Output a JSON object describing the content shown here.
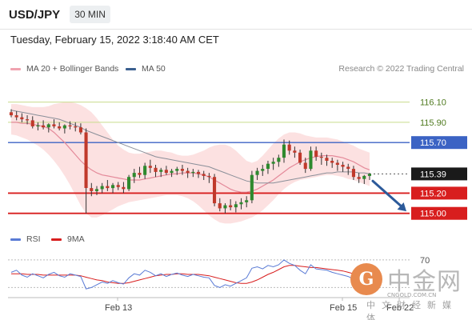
{
  "header": {
    "symbol": "USD/JPY",
    "timeframe": "30 MIN"
  },
  "datetime": "Tuesday, February 15, 2022 3:18:40 AM CET",
  "legend": {
    "ma20_label": "MA 20 + Bollinger Bands",
    "ma50_label": "MA 50",
    "credit": "Research © 2022 Trading Central"
  },
  "rsi_legend": {
    "rsi_label": "RSI",
    "ma9_label": "9MA"
  },
  "colors": {
    "ma20": "#f0a3b0",
    "ma50": "#3a5f8f",
    "bollinger_fill": "#fbdcdc",
    "resistance": "#3b63c4",
    "support": "#d81e1e",
    "candle_up": "#2e8a2e",
    "candle_down": "#c0392b",
    "arrow": "#2c5a9a",
    "price_tag": "#1a1a1a",
    "gridline": "#c8dc8c",
    "rsi": "#5a7bd5",
    "rsi_ma": "#d81e1e"
  },
  "watermark": {
    "glyph": "G",
    "name": "中金网",
    "url": "CNGOLD.COM.CN",
    "subtitle": "中文财经新媒体"
  },
  "chart_data": {
    "type": "candlestick",
    "title": "USD/JPY",
    "timeframe": "30 MIN",
    "x_ticks": [
      "Feb 13",
      "Feb 15",
      "Feb 22"
    ],
    "ylim": [
      114.8,
      116.35
    ],
    "levels": [
      {
        "price": 116.1,
        "label": "116.10",
        "style": "grid"
      },
      {
        "price": 115.9,
        "label": "115.90",
        "style": "grid"
      },
      {
        "price": 115.7,
        "label": "115.70",
        "style": "resistance"
      },
      {
        "price": 115.39,
        "label": "115.39",
        "style": "current"
      },
      {
        "price": 115.2,
        "label": "115.20",
        "style": "support"
      },
      {
        "price": 115.0,
        "label": "115.00",
        "style": "support"
      }
    ],
    "candles": [
      [
        116.0,
        116.03,
        115.95,
        115.97
      ],
      [
        115.97,
        116.01,
        115.92,
        115.95
      ],
      [
        115.95,
        115.99,
        115.9,
        115.93
      ],
      [
        115.93,
        115.97,
        115.88,
        115.92
      ],
      [
        115.92,
        115.96,
        115.84,
        115.86
      ],
      [
        115.86,
        115.9,
        115.82,
        115.87
      ],
      [
        115.87,
        115.92,
        115.83,
        115.85
      ],
      [
        115.85,
        115.89,
        115.8,
        115.88
      ],
      [
        115.88,
        115.93,
        115.84,
        115.86
      ],
      [
        115.86,
        115.9,
        115.82,
        115.84
      ],
      [
        115.84,
        115.88,
        115.79,
        115.87
      ],
      [
        115.87,
        115.91,
        115.83,
        115.86
      ],
      [
        115.86,
        115.9,
        115.81,
        115.85
      ],
      [
        115.85,
        115.89,
        115.78,
        115.8
      ],
      [
        115.8,
        115.84,
        115.0,
        115.25
      ],
      [
        115.25,
        115.3,
        115.17,
        115.22
      ],
      [
        115.22,
        115.27,
        115.18,
        115.24
      ],
      [
        115.24,
        115.3,
        115.2,
        115.27
      ],
      [
        115.27,
        115.33,
        115.22,
        115.25
      ],
      [
        115.25,
        115.3,
        115.2,
        115.28
      ],
      [
        115.28,
        115.31,
        115.23,
        115.26
      ],
      [
        115.26,
        115.31,
        115.2,
        115.24
      ],
      [
        115.24,
        115.38,
        115.22,
        115.36
      ],
      [
        115.36,
        115.44,
        115.3,
        115.4
      ],
      [
        115.4,
        115.46,
        115.35,
        115.38
      ],
      [
        115.38,
        115.5,
        115.34,
        115.47
      ],
      [
        115.47,
        115.53,
        115.4,
        115.45
      ],
      [
        115.45,
        115.48,
        115.36,
        115.41
      ],
      [
        115.41,
        115.45,
        115.36,
        115.43
      ],
      [
        115.43,
        115.47,
        115.38,
        115.4
      ],
      [
        115.4,
        115.44,
        115.36,
        115.42
      ],
      [
        115.42,
        115.46,
        115.38,
        115.44
      ],
      [
        115.44,
        115.48,
        115.38,
        115.42
      ],
      [
        115.42,
        115.45,
        115.35,
        115.4
      ],
      [
        115.4,
        115.44,
        115.36,
        115.41
      ],
      [
        115.41,
        115.43,
        115.35,
        115.39
      ],
      [
        115.39,
        115.42,
        115.33,
        115.37
      ],
      [
        115.37,
        115.4,
        115.3,
        115.36
      ],
      [
        115.36,
        115.39,
        115.07,
        115.1
      ],
      [
        115.1,
        115.15,
        115.02,
        115.05
      ],
      [
        115.05,
        115.1,
        115.0,
        115.08
      ],
      [
        115.08,
        115.14,
        115.03,
        115.06
      ],
      [
        115.06,
        115.12,
        115.01,
        115.09
      ],
      [
        115.09,
        115.15,
        115.04,
        115.11
      ],
      [
        115.11,
        115.17,
        115.06,
        115.13
      ],
      [
        115.13,
        115.42,
        115.1,
        115.38
      ],
      [
        115.38,
        115.45,
        115.33,
        115.42
      ],
      [
        115.42,
        115.48,
        115.37,
        115.44
      ],
      [
        115.44,
        115.52,
        115.39,
        115.49
      ],
      [
        115.49,
        115.55,
        115.43,
        115.51
      ],
      [
        115.51,
        115.58,
        115.46,
        115.55
      ],
      [
        115.55,
        115.73,
        115.5,
        115.68
      ],
      [
        115.68,
        115.72,
        115.58,
        115.62
      ],
      [
        115.62,
        115.66,
        115.55,
        115.6
      ],
      [
        115.6,
        115.63,
        115.48,
        115.5
      ],
      [
        115.5,
        115.55,
        115.4,
        115.44
      ],
      [
        115.44,
        115.66,
        115.42,
        115.62
      ],
      [
        115.62,
        115.66,
        115.52,
        115.56
      ],
      [
        115.56,
        115.6,
        115.48,
        115.55
      ],
      [
        115.55,
        115.58,
        115.47,
        115.52
      ],
      [
        115.52,
        115.55,
        115.45,
        115.5
      ],
      [
        115.5,
        115.53,
        115.42,
        115.48
      ],
      [
        115.48,
        115.51,
        115.41,
        115.46
      ],
      [
        115.46,
        115.49,
        115.38,
        115.44
      ],
      [
        115.44,
        115.47,
        115.33,
        115.36
      ],
      [
        115.36,
        115.4,
        115.3,
        115.34
      ],
      [
        115.34,
        115.38,
        115.29,
        115.37
      ],
      [
        115.37,
        115.4,
        115.33,
        115.39
      ]
    ],
    "ma20": [
      115.9,
      115.9,
      115.89,
      115.89,
      115.88,
      115.87,
      115.86,
      115.84,
      115.8,
      115.75,
      115.7,
      115.64,
      115.58,
      115.52,
      115.47,
      115.43,
      115.4,
      115.38,
      115.37,
      115.36,
      115.35,
      115.34,
      115.33,
      115.33,
      115.33,
      115.34,
      115.35,
      115.36,
      115.37,
      115.38,
      115.39,
      115.39,
      115.4,
      115.4,
      115.4,
      115.39,
      115.38,
      115.36,
      115.33,
      115.3,
      115.27,
      115.24,
      115.22,
      115.21,
      115.21,
      115.22,
      115.24,
      115.27,
      115.3,
      115.33,
      115.37,
      115.41,
      115.45,
      115.48,
      115.51,
      115.53,
      115.55,
      115.56,
      115.57,
      115.57,
      115.57,
      115.56,
      115.55,
      115.53,
      115.51,
      115.48,
      115.45,
      115.43
    ],
    "ma50": [
      116.02,
      116.01,
      116.0,
      115.99,
      115.98,
      115.97,
      115.96,
      115.95,
      115.94,
      115.93,
      115.91,
      115.89,
      115.87,
      115.85,
      115.82,
      115.8,
      115.78,
      115.76,
      115.74,
      115.72,
      115.7,
      115.68,
      115.66,
      115.64,
      115.62,
      115.6,
      115.58,
      115.56,
      115.55,
      115.54,
      115.53,
      115.52,
      115.51,
      115.5,
      115.49,
      115.48,
      115.47,
      115.46,
      115.44,
      115.42,
      115.4,
      115.38,
      115.36,
      115.34,
      115.32,
      115.31,
      115.3,
      115.3,
      115.3,
      115.3,
      115.31,
      115.32,
      115.33,
      115.34,
      115.35,
      115.36,
      115.37,
      115.38,
      115.39,
      115.4,
      115.4,
      115.41,
      115.41,
      115.41,
      115.41,
      115.4,
      115.4,
      115.39
    ],
    "bollinger_upper": [
      116.08,
      116.08,
      116.07,
      116.06,
      116.05,
      116.05,
      116.05,
      116.06,
      116.08,
      116.09,
      116.1,
      116.1,
      116.09,
      116.07,
      116.04,
      116.0,
      115.94,
      115.87,
      115.8,
      115.73,
      115.67,
      115.63,
      115.6,
      115.59,
      115.59,
      115.6,
      115.61,
      115.62,
      115.62,
      115.61,
      115.6,
      115.58,
      115.57,
      115.57,
      115.58,
      115.6,
      115.62,
      115.65,
      115.67,
      115.68,
      115.68,
      115.66,
      115.62,
      115.57,
      115.52,
      115.5,
      115.52,
      115.57,
      115.63,
      115.69,
      115.74,
      115.78,
      115.8,
      115.8,
      115.79,
      115.77,
      115.76,
      115.75,
      115.75,
      115.75,
      115.74,
      115.73,
      115.71,
      115.69,
      115.67,
      115.64,
      115.62,
      115.6
    ],
    "bollinger_lower": [
      115.78,
      115.77,
      115.75,
      115.73,
      115.7,
      115.67,
      115.63,
      115.58,
      115.52,
      115.45,
      115.37,
      115.28,
      115.18,
      115.08,
      115.0,
      114.96,
      114.96,
      114.98,
      115.01,
      115.04,
      115.07,
      115.09,
      115.11,
      115.12,
      115.13,
      115.14,
      115.15,
      115.16,
      115.17,
      115.18,
      115.18,
      115.18,
      115.17,
      115.15,
      115.12,
      115.08,
      115.03,
      114.98,
      114.94,
      114.91,
      114.9,
      114.9,
      114.91,
      114.92,
      114.94,
      114.96,
      114.99,
      115.03,
      115.08,
      115.13,
      115.19,
      115.24,
      115.28,
      115.31,
      115.33,
      115.34,
      115.35,
      115.36,
      115.37,
      115.38,
      115.38,
      115.37,
      115.36,
      115.34,
      115.33,
      115.31,
      115.29,
      115.27
    ],
    "forecast_arrow": {
      "from": 115.32,
      "to": 115.02
    },
    "rsi": {
      "level_label": "70",
      "level": 70,
      "ylim": [
        20,
        85
      ],
      "rsi_values": [
        52,
        55,
        48,
        45,
        50,
        47,
        44,
        49,
        52,
        47,
        45,
        50,
        48,
        46,
        28,
        30,
        34,
        38,
        36,
        40,
        37,
        35,
        44,
        50,
        48,
        55,
        52,
        47,
        50,
        46,
        49,
        51,
        48,
        46,
        49,
        47,
        45,
        44,
        33,
        30,
        34,
        32,
        36,
        40,
        44,
        58,
        60,
        57,
        62,
        60,
        63,
        70,
        65,
        62,
        55,
        50,
        63,
        57,
        56,
        55,
        52,
        50,
        48,
        46,
        42,
        40,
        43,
        45
      ],
      "ma9_values": [
        50,
        50,
        50,
        49,
        49,
        49,
        48,
        48,
        48,
        48,
        48,
        48,
        48,
        47,
        45,
        43,
        41,
        40,
        38,
        37,
        36,
        36,
        37,
        39,
        41,
        43,
        45,
        47,
        48,
        49,
        49,
        50,
        50,
        49,
        49,
        49,
        48,
        47,
        45,
        43,
        41,
        39,
        37,
        36,
        36,
        38,
        41,
        45,
        49,
        52,
        56,
        60,
        62,
        62,
        61,
        60,
        59,
        59,
        58,
        57,
        56,
        55,
        54,
        52,
        50,
        48,
        47,
        46
      ]
    }
  }
}
